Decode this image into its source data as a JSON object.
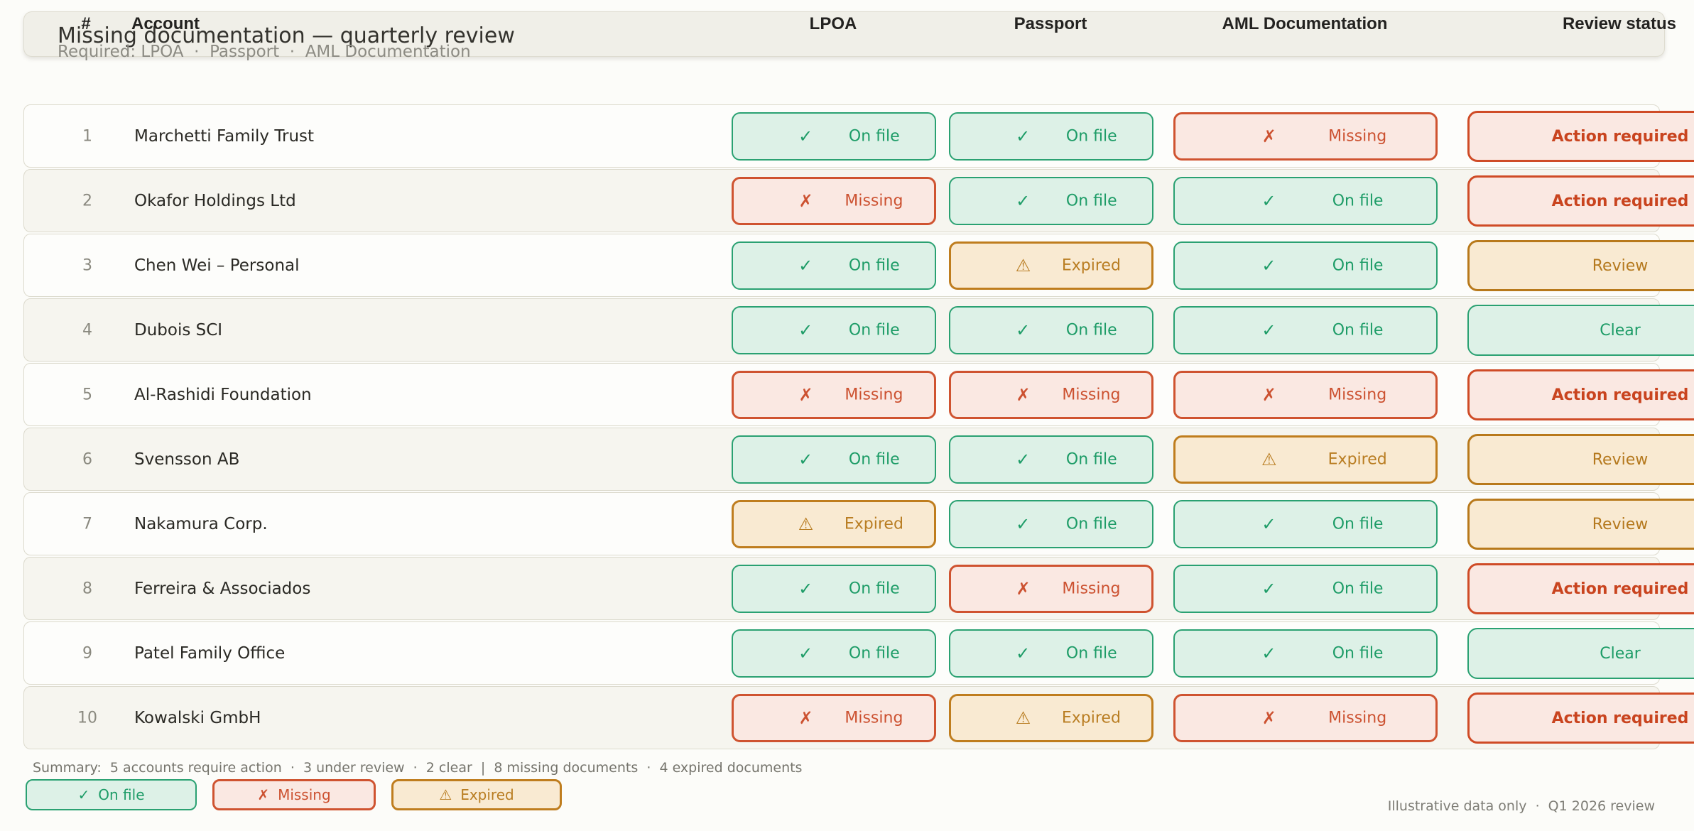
{
  "page": {
    "title": "Missing documentation — quarterly review",
    "subtitle": "Required: LPOA  ·  Passport  ·  AML Documentation",
    "summary": "Summary:  5 accounts require action  ·  3 under review  ·  2 clear  |  8 missing documents  ·  4 expired documents",
    "footnote": "Illustrative data only  ·  Q1 2026 review"
  },
  "table": {
    "columns": [
      {
        "label": "#"
      },
      {
        "label": "Account"
      },
      {
        "label": "LPOA"
      },
      {
        "label": "Passport"
      },
      {
        "label": "AML Documentation"
      },
      {
        "label": "Review status"
      }
    ],
    "rows": [
      {
        "num": "1",
        "account": "Marchetti Family Trust",
        "lpoa": "onfile",
        "passport": "onfile",
        "aml": "missing",
        "review": "action"
      },
      {
        "num": "2",
        "account": "Okafor Holdings Ltd",
        "lpoa": "missing",
        "passport": "onfile",
        "aml": "onfile",
        "review": "action"
      },
      {
        "num": "3",
        "account": "Chen Wei – Personal",
        "lpoa": "onfile",
        "passport": "expired",
        "aml": "onfile",
        "review": "review"
      },
      {
        "num": "4",
        "account": "Dubois SCI",
        "lpoa": "onfile",
        "passport": "onfile",
        "aml": "onfile",
        "review": "clear"
      },
      {
        "num": "5",
        "account": "Al-Rashidi Foundation",
        "lpoa": "missing",
        "passport": "missing",
        "aml": "missing",
        "review": "action"
      },
      {
        "num": "6",
        "account": "Svensson AB",
        "lpoa": "onfile",
        "passport": "onfile",
        "aml": "expired",
        "review": "review"
      },
      {
        "num": "7",
        "account": "Nakamura Corp.",
        "lpoa": "expired",
        "passport": "onfile",
        "aml": "onfile",
        "review": "review"
      },
      {
        "num": "8",
        "account": "Ferreira & Associados",
        "lpoa": "onfile",
        "passport": "missing",
        "aml": "onfile",
        "review": "action"
      },
      {
        "num": "9",
        "account": "Patel Family Office",
        "lpoa": "onfile",
        "passport": "onfile",
        "aml": "onfile",
        "review": "clear"
      },
      {
        "num": "10",
        "account": "Kowalski GmbH",
        "lpoa": "missing",
        "passport": "expired",
        "aml": "missing",
        "review": "action"
      }
    ]
  },
  "statuses": {
    "onfile": {
      "label": "On file",
      "icon": "✓",
      "icon_name": "check-icon"
    },
    "missing": {
      "label": "Missing",
      "icon": "✗",
      "icon_name": "x-icon"
    },
    "expired": {
      "label": "Expired",
      "icon": "⚠",
      "icon_name": "warning-icon"
    }
  },
  "reviews": {
    "action": {
      "label": "Action required"
    },
    "review": {
      "label": "Review"
    },
    "clear": {
      "label": "Clear"
    }
  },
  "legend": [
    {
      "status": "onfile",
      "icon": "✓",
      "label": "On file"
    },
    {
      "status": "missing",
      "icon": "✗",
      "label": "Missing"
    },
    {
      "status": "expired",
      "icon": "⚠",
      "label": "Expired"
    }
  ],
  "colors": {
    "page_bg": "#fcfcf9",
    "card_bg": "#f0efe8",
    "card_border": "#dedcd0",
    "title": "#33322d",
    "subtitle": "#8c8b83",
    "header_text": "#232220",
    "row_border": "#dcdacd",
    "row_odd": "#fdfdfb",
    "row_even": "#f6f5ef",
    "num": "#8a897f",
    "name": "#2a2924",
    "green_bg": "#ddf1e7",
    "green_border": "#2aa172",
    "green_text": "#1d9c67",
    "red_bg": "#fae8e2",
    "red_border": "#cf5330",
    "red_text": "#cc5130",
    "amber_bg": "#f9ead2",
    "amber_border": "#bf7d1e",
    "amber_text": "#b97d22",
    "action_border": "#cf4b26",
    "action_text": "#c9441f",
    "review_border": "#b8791b",
    "review_text": "#b5791e",
    "summary": "#75746c",
    "note": "#7e7d76"
  }
}
